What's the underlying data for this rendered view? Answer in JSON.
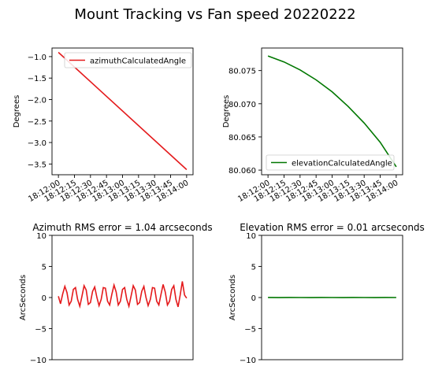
{
  "title": "Mount Tracking vs Fan speed 20220222",
  "chart_data": [
    {
      "type": "line",
      "title": "",
      "ylabel": "Degrees",
      "xlabel": "",
      "x_ticks": [
        "18:12:00",
        "18:12:15",
        "18:12:30",
        "18:12:45",
        "18:13:00",
        "18:13:15",
        "18:13:30",
        "18:13:45",
        "18:14:00"
      ],
      "x_range_s": [
        -6,
        126
      ],
      "ylim": [
        -3.75,
        -0.8
      ],
      "y_ticks": [
        -1.0,
        -1.5,
        -2.0,
        -2.5,
        -3.0,
        -3.5
      ],
      "y_tick_labels": [
        "−1.0",
        "−1.5",
        "−2.0",
        "−2.5",
        "−3.0",
        "−3.5"
      ],
      "legend": "top-right",
      "series": [
        {
          "name": "azimuthCalculatedAngle",
          "color": "#e41a1c",
          "x_s": [
            0,
            120
          ],
          "values": [
            -0.9,
            -3.63
          ]
        }
      ]
    },
    {
      "type": "line",
      "title": "",
      "ylabel": "Degrees",
      "xlabel": "",
      "x_ticks": [
        "18:12:00",
        "18:12:15",
        "18:12:30",
        "18:12:45",
        "18:13:00",
        "18:13:15",
        "18:13:30",
        "18:13:45",
        "18:14:00"
      ],
      "x_range_s": [
        -6,
        126
      ],
      "ylim": [
        80.0593,
        80.0784
      ],
      "y_ticks": [
        80.06,
        80.065,
        80.07,
        80.075
      ],
      "y_tick_labels": [
        "80.060",
        "80.065",
        "80.070",
        "80.075"
      ],
      "legend": "bottom-right",
      "series": [
        {
          "name": "elevationCalculatedAngle",
          "color": "#007700",
          "x_s": [
            0,
            15,
            30,
            45,
            60,
            75,
            90,
            105,
            120
          ],
          "values": [
            80.0772,
            80.0763,
            80.0751,
            80.0736,
            80.0718,
            80.0696,
            80.0671,
            80.0642,
            80.0605
          ]
        }
      ]
    },
    {
      "type": "line",
      "title": "Azimuth RMS error = 1.04 arcseconds",
      "ylabel": "ArcSeconds",
      "xlabel": "",
      "x_ticks": [],
      "x_range_s": [
        -6,
        126
      ],
      "ylim": [
        -10,
        10
      ],
      "y_ticks": [
        10,
        5,
        0,
        -5,
        -10
      ],
      "y_tick_labels": [
        "10",
        "5",
        "0",
        "−5",
        "−10"
      ],
      "legend": "none",
      "series": [
        {
          "name": "",
          "color": "#e41a1c",
          "x_s": [
            0,
            2,
            4,
            6,
            8,
            10,
            12,
            14,
            16,
            18,
            20,
            22,
            24,
            26,
            28,
            30,
            32,
            34,
            36,
            38,
            40,
            42,
            44,
            46,
            48,
            50,
            52,
            54,
            56,
            58,
            60,
            62,
            64,
            66,
            68,
            70,
            72,
            74,
            76,
            78,
            80,
            82,
            84,
            86,
            88,
            90,
            92,
            94,
            96,
            98,
            100,
            102,
            104,
            106,
            108,
            110,
            112,
            114,
            116,
            118,
            120
          ],
          "values": [
            0.2,
            -1.0,
            0.6,
            1.8,
            0.8,
            -1.2,
            -0.6,
            1.3,
            1.6,
            -0.3,
            -1.4,
            0.2,
            1.9,
            1.2,
            -1.1,
            -0.8,
            1.0,
            1.7,
            0.0,
            -1.3,
            -0.3,
            1.6,
            1.5,
            -0.6,
            -1.2,
            0.5,
            2.0,
            0.9,
            -1.2,
            -0.6,
            1.3,
            1.6,
            -0.3,
            -1.4,
            0.2,
            1.9,
            1.2,
            -1.1,
            -0.8,
            1.0,
            1.8,
            0.0,
            -1.3,
            -0.3,
            1.6,
            1.5,
            -0.6,
            -1.2,
            0.5,
            2.1,
            0.9,
            -1.2,
            -0.6,
            1.3,
            1.9,
            -0.3,
            -1.5,
            0.4,
            2.6,
            0.4,
            -0.1
          ]
        }
      ]
    },
    {
      "type": "line",
      "title": "Elevation RMS error = 0.01 arcseconds",
      "ylabel": "ArcSeconds",
      "xlabel": "",
      "x_ticks": [],
      "x_range_s": [
        -6,
        126
      ],
      "ylim": [
        -10,
        10
      ],
      "y_ticks": [
        10,
        5,
        0,
        -5,
        -10
      ],
      "y_tick_labels": [
        "10",
        "5",
        "0",
        "−5",
        "−10"
      ],
      "legend": "none",
      "series": [
        {
          "name": "",
          "color": "#007700",
          "x_s": [
            0,
            10,
            20,
            30,
            40,
            50,
            60,
            70,
            80,
            90,
            100,
            110,
            120
          ],
          "values": [
            0.01,
            -0.01,
            0.01,
            0.0,
            -0.01,
            0.01,
            0.0,
            -0.01,
            0.01,
            0.0,
            -0.01,
            0.01,
            0.0
          ]
        }
      ]
    }
  ]
}
